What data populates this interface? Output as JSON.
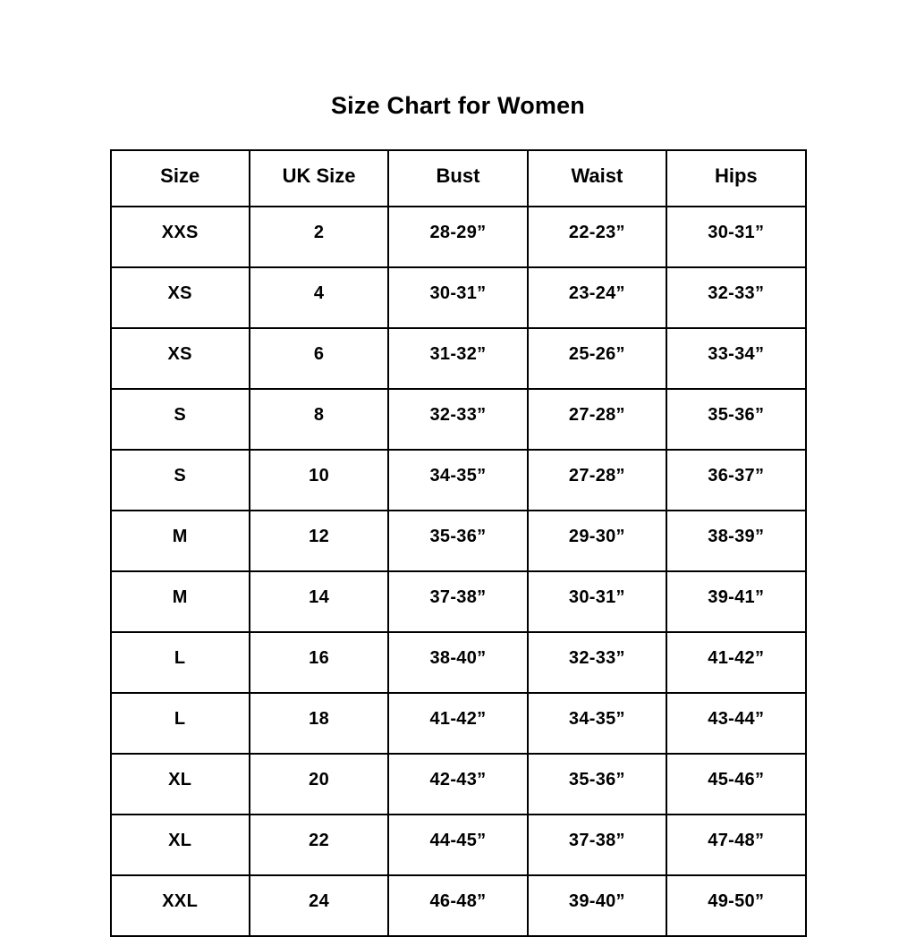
{
  "page": {
    "title": "Size Chart for Women"
  },
  "chart_data": {
    "type": "table",
    "title": "Size Chart for Women",
    "columns": [
      "Size",
      "UK Size",
      "Bust",
      "Waist",
      "Hips"
    ],
    "rows": [
      [
        "XXS",
        "2",
        "28-29”",
        "22-23”",
        "30-31”"
      ],
      [
        "XS",
        "4",
        "30-31”",
        "23-24”",
        "32-33”"
      ],
      [
        "XS",
        "6",
        "31-32”",
        "25-26”",
        "33-34”"
      ],
      [
        "S",
        "8",
        "32-33”",
        "27-28”",
        "35-36”"
      ],
      [
        "S",
        "10",
        "34-35”",
        "27-28”",
        "36-37”"
      ],
      [
        "M",
        "12",
        "35-36”",
        "29-30”",
        "38-39”"
      ],
      [
        "M",
        "14",
        "37-38”",
        "30-31”",
        "39-41”"
      ],
      [
        "L",
        "16",
        "38-40”",
        "32-33”",
        "41-42”"
      ],
      [
        "L",
        "18",
        "41-42”",
        "34-35”",
        "43-44”"
      ],
      [
        "XL",
        "20",
        "42-43”",
        "35-36”",
        "45-46”"
      ],
      [
        "XL",
        "22",
        "44-45”",
        "37-38”",
        "47-48”"
      ],
      [
        "XXL",
        "24",
        "46-48”",
        "39-40”",
        "49-50”"
      ]
    ],
    "layout": {
      "grid": true,
      "border_color": "#000000",
      "text_color": "#000000",
      "background_color": "#ffffff"
    }
  }
}
